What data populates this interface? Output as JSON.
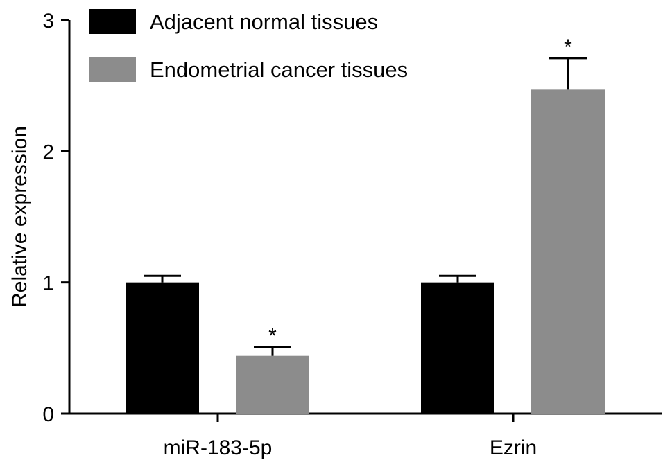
{
  "chart_data": {
    "type": "bar",
    "title": "",
    "xlabel": "",
    "ylabel": "Relative expression",
    "ylim": [
      0,
      3
    ],
    "yticks": [
      0,
      1,
      2,
      3
    ],
    "categories": [
      "miR-183-5p",
      "Ezrin"
    ],
    "series": [
      {
        "name": "Adjacent normal tissues",
        "color": "#000000",
        "values": [
          1.0,
          1.0
        ],
        "errors": [
          0.05,
          0.05
        ],
        "annotations": [
          "",
          ""
        ]
      },
      {
        "name": "Endometrial cancer tissues",
        "color": "#8c8c8c",
        "values": [
          0.44,
          2.47
        ],
        "errors": [
          0.07,
          0.24
        ],
        "annotations": [
          "*",
          "*"
        ]
      }
    ],
    "legend_position": "top-left",
    "grid": false
  }
}
